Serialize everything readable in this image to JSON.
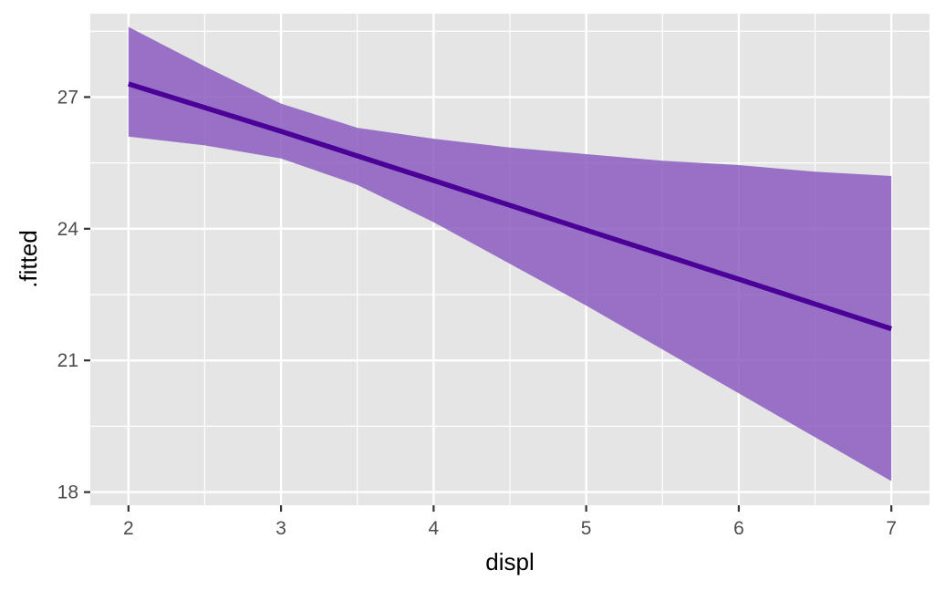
{
  "chart_data": {
    "type": "line",
    "title": "",
    "xlabel": "displ",
    "ylabel": ".fitted",
    "xlim": [
      1.75,
      7.25
    ],
    "ylim": [
      17.7,
      28.9
    ],
    "x_ticks": [
      2,
      3,
      4,
      5,
      6,
      7
    ],
    "y_ticks": [
      18,
      21,
      24,
      27
    ],
    "grid": true,
    "legend": "none",
    "series": [
      {
        "x": [
          2,
          3,
          4,
          5,
          6,
          7
        ],
        "values": [
          27.3,
          26.22,
          25.1,
          23.97,
          22.85,
          21.72
        ]
      }
    ],
    "ribbon": {
      "x": [
        2,
        2.5,
        3,
        3.5,
        4,
        4.5,
        5,
        5.5,
        6,
        6.5,
        7
      ],
      "lower": [
        26.1,
        25.9,
        25.6,
        25.0,
        24.15,
        23.2,
        22.25,
        21.25,
        20.25,
        19.25,
        18.25
      ],
      "upper": [
        28.6,
        27.7,
        26.85,
        26.3,
        26.05,
        25.85,
        25.7,
        25.55,
        25.45,
        25.3,
        25.2
      ]
    },
    "colors": {
      "line": "#4b0098",
      "ribbon": "#8b5cc0",
      "panel": "#e5e5e5",
      "grid": "#ffffff"
    }
  }
}
